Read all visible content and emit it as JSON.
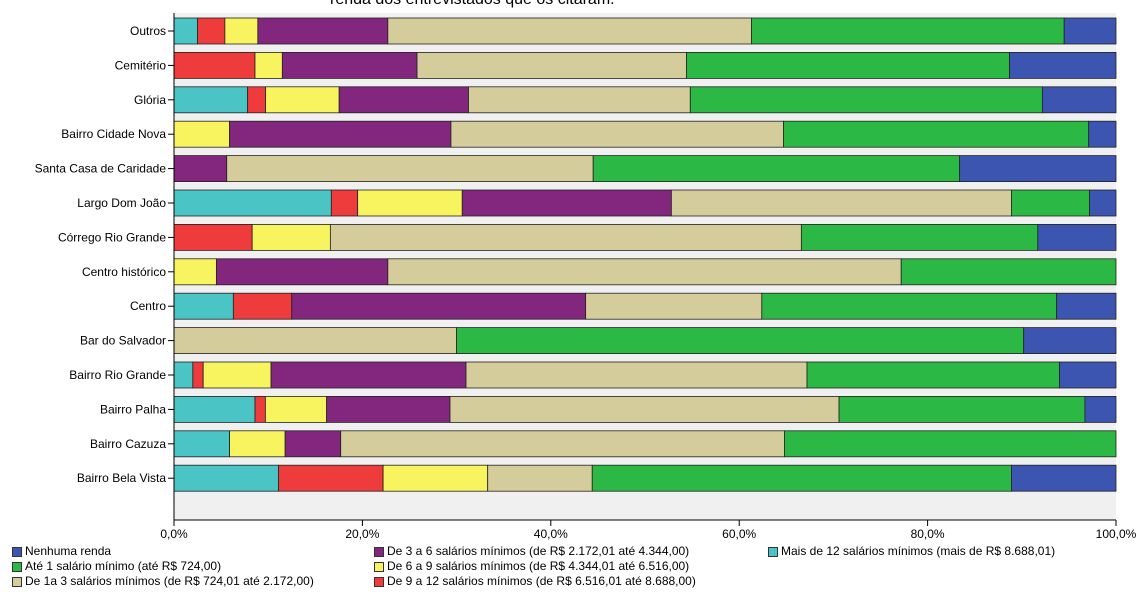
{
  "chart_data": {
    "type": "bar",
    "orientation": "horizontal",
    "stacked": true,
    "title": "renda dos entrevistados que os citaram.",
    "xlim": [
      0,
      100
    ],
    "x_ticks": [
      "0,0%",
      "20,0%",
      "40,0%",
      "60,0%",
      "80,0%",
      "100,0%"
    ],
    "grid": false,
    "legend_position": "bottom",
    "categories": [
      "Outros",
      "Cemitério",
      "Glória",
      "Bairro Cidade Nova",
      "Santa Casa de Caridade",
      "Largo Dom João",
      "Córrego Rio Grande",
      "Centro histórico",
      "Centro",
      "Bar do Salvador",
      "Bairro Rio Grande",
      "Bairro Palha",
      "Bairro Cazuza",
      "Bairro Bela Vista"
    ],
    "series": [
      {
        "name": "Mais de 12 salários mínimos (mais de R$ 8.688,01)",
        "color": "#4bc4c6",
        "values": [
          2.5,
          0,
          7.8,
          0,
          0,
          16.7,
          0,
          0,
          6.3,
          0,
          2.0,
          8.6,
          5.9,
          11.1
        ]
      },
      {
        "name": "De 9 a 12 salários mínimos (de R$ 6.516,01 até 8.688,00)",
        "color": "#ee3b3b",
        "values": [
          2.9,
          8.6,
          1.9,
          0,
          0,
          2.8,
          8.3,
          0,
          6.2,
          0,
          1.1,
          1.1,
          0,
          11.1
        ]
      },
      {
        "name": "De 6 a 9 salários mínimos (de R$ 4.344,01 até 6.516,00)",
        "color": "#f8f460",
        "values": [
          3.5,
          2.9,
          7.8,
          5.9,
          0,
          11.1,
          8.3,
          4.5,
          0,
          0,
          7.2,
          6.5,
          5.9,
          11.1
        ]
      },
      {
        "name": "De 3 a 6 salários mínimos (de R$ 2.172,01 até 4.344,00)",
        "color": "#82267e",
        "values": [
          13.8,
          14.3,
          13.7,
          23.5,
          5.6,
          22.2,
          0,
          18.2,
          31.2,
          0,
          20.7,
          13.1,
          5.9,
          0
        ]
      },
      {
        "name": "De 1a 3 salários mínimos (de R$ 724,01 até 2.172,00)",
        "color": "#d4cc9a",
        "values": [
          38.6,
          28.6,
          23.5,
          35.3,
          38.9,
          36.1,
          50.0,
          54.5,
          18.7,
          30.0,
          36.2,
          41.3,
          47.1,
          11.1
        ]
      },
      {
        "name": "Até 1 salário mínimo (até R$ 724,00)",
        "color": "#2cb844",
        "values": [
          33.2,
          34.3,
          37.3,
          32.4,
          38.9,
          8.3,
          25.1,
          22.8,
          31.3,
          60.2,
          26.8,
          26.1,
          35.2,
          44.5
        ]
      },
      {
        "name": "Nenhuma renda",
        "color": "#3c55b0",
        "values": [
          5.5,
          11.3,
          7.8,
          2.9,
          16.6,
          2.8,
          8.3,
          0,
          6.3,
          9.8,
          6.0,
          3.3,
          0,
          11.1
        ]
      }
    ]
  },
  "legend": {
    "col1": [
      "Nenhuma renda",
      "Até 1 salário mínimo (até R$ 724,00)",
      "De 1a 3 salários mínimos (de R$ 724,01 até 2.172,00)"
    ],
    "col2": [
      "De 3 a 6 salários mínimos (de R$ 2.172,01 até 4.344,00)",
      "De 6 a 9 salários mínimos (de R$ 4.344,01 até 6.516,00)",
      "De 9 a 12 salários mínimos (de R$ 6.516,01 até 8.688,00)"
    ],
    "col3": [
      "Mais de 12 salários mínimos (mais de R$ 8.688,01)"
    ],
    "colors": {
      "col1": [
        "#3c55b0",
        "#2cb844",
        "#d4cc9a"
      ],
      "col2": [
        "#82267e",
        "#f8f460",
        "#ee3b3b"
      ],
      "col3": [
        "#4bc4c6"
      ]
    }
  }
}
